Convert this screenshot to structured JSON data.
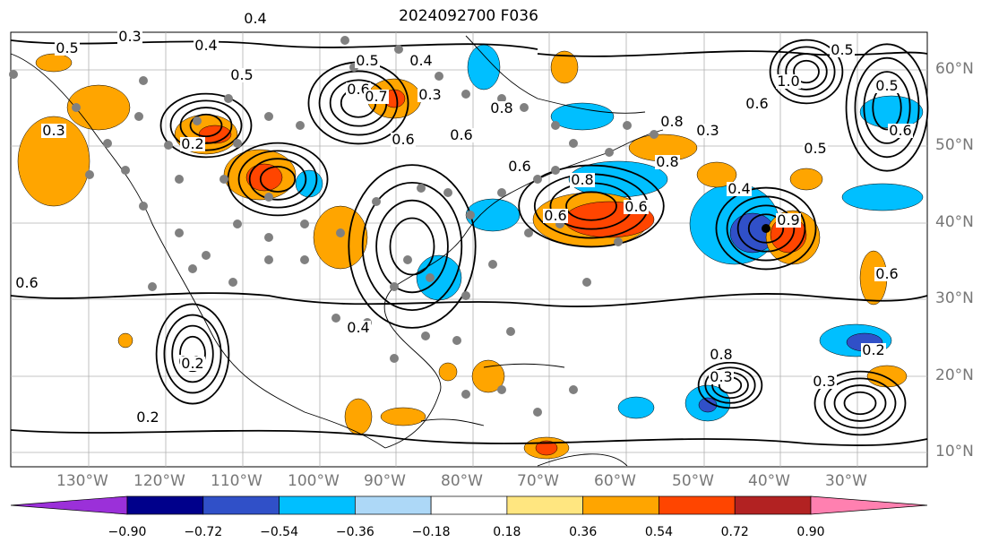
{
  "title": "2024092700 F036",
  "lat_labels": [
    "60°N",
    "50°N",
    "40°N",
    "30°N",
    "20°N",
    "10°N"
  ],
  "lon_labels": [
    "130°W",
    "120°W",
    "110°W",
    "100°W",
    "90°W",
    "80°W",
    "70°W",
    "60°W",
    "50°W",
    "40°W",
    "30°W"
  ],
  "colorbar": {
    "ticks": [
      "−0.90",
      "−0.72",
      "−0.54",
      "−0.36",
      "−0.18",
      "0.18",
      "0.36",
      "0.54",
      "0.72",
      "0.90"
    ],
    "colors": [
      "#9b30d9",
      "#00008b",
      "#3050c8",
      "#00bfff",
      "#add8f7",
      "#ffffff",
      "#ffe680",
      "#ffa500",
      "#ff4500",
      "#b22222",
      "#ff80b0"
    ]
  },
  "contour_labels": [
    "0.3",
    "0.5",
    "0.4",
    "0.5",
    "0.4",
    "0.5",
    "0.6",
    "0.7",
    "0.6",
    "0.6",
    "0.8",
    "0.8",
    "0.3",
    "0.2",
    "0.6",
    "0.8",
    "0.6",
    "0.4",
    "0.6",
    "0.8",
    "0.5",
    "0.3",
    "0.4",
    "0.4",
    "0.2",
    "0.2",
    "0.3",
    "0.6",
    "1.0",
    "0.6",
    "0.5",
    "0.5",
    "0.6",
    "0.2",
    "0.3",
    "0.8",
    "0.3",
    "0.2",
    "0.6",
    "0.9"
  ]
}
